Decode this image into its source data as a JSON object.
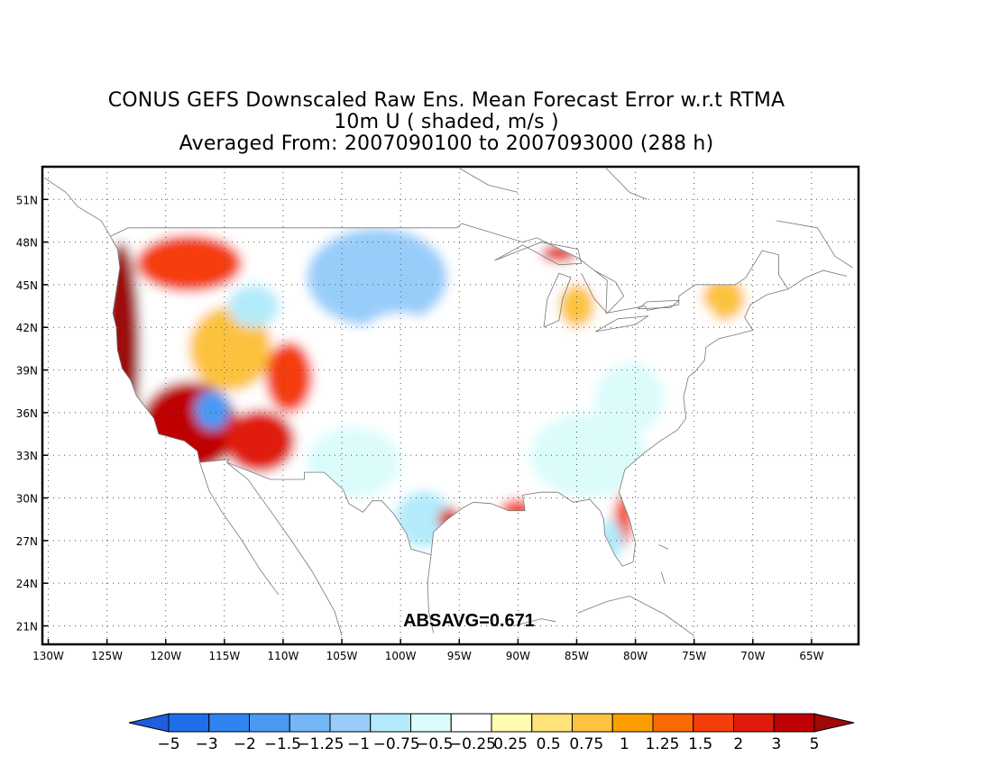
{
  "title": {
    "line1": "CONUS GEFS Downscaled Raw Ens. Mean Forecast Error w.r.t RTMA",
    "line2": "10m U ( shaded, m/s )",
    "line3": "Averaged From: 2007090100 to 2007093000 (288 h)"
  },
  "annotation": "ABSAVG=0.671",
  "axes": {
    "lat_ticks": [
      "51N",
      "48N",
      "45N",
      "42N",
      "39N",
      "36N",
      "33N",
      "30N",
      "27N",
      "24N",
      "21N"
    ],
    "lat_values": [
      51,
      48,
      45,
      42,
      39,
      36,
      33,
      30,
      27,
      24,
      21
    ],
    "lon_ticks": [
      "130W",
      "125W",
      "120W",
      "115W",
      "110W",
      "105W",
      "100W",
      "95W",
      "90W",
      "85W",
      "80W",
      "75W",
      "70W",
      "65W"
    ],
    "lon_values": [
      -130,
      -125,
      -120,
      -115,
      -110,
      -105,
      -100,
      -95,
      -90,
      -85,
      -80,
      -75,
      -70,
      -65
    ],
    "lat_range": [
      19.7,
      53.3
    ],
    "lon_range": [
      -130.5,
      -61
    ],
    "grid": "dotted"
  },
  "colorbar": {
    "labels": [
      "−5",
      "−3",
      "−2",
      "−1.5",
      "−1.25",
      "−1",
      "−0.75",
      "−0.5",
      "−0.25",
      "0.25",
      "0.5",
      "0.75",
      "1",
      "1.25",
      "1.5",
      "2",
      "3",
      "5"
    ],
    "colors": [
      "#1e5fe0",
      "#1f6fe8",
      "#2f84ef",
      "#4a9af4",
      "#74b6f8",
      "#98cdfa",
      "#b4ebfb",
      "#dcfcfc",
      "#ffffff",
      "#fffbb0",
      "#fee27a",
      "#fdc23e",
      "#fb9f00",
      "#fb6a00",
      "#f53c0b",
      "#e01b0c",
      "#bf0004",
      "#9e0a08"
    ]
  },
  "regions": [
    {
      "name": "west-coast-high",
      "lat": 40.5,
      "lon": -123.8,
      "rx": 1.6,
      "ry": 7.5,
      "value": 3
    },
    {
      "name": "southwest-desert",
      "lat": 35.0,
      "lon": -118.0,
      "rx": 4.2,
      "ry": 3.2,
      "value": 2.5
    },
    {
      "name": "northwest-interior",
      "lat": 46.5,
      "lon": -118.0,
      "rx": 4.5,
      "ry": 2.0,
      "value": 1.4
    },
    {
      "name": "great-basin-mix",
      "lat": 40.5,
      "lon": -114.5,
      "rx": 3.5,
      "ry": 3.0,
      "value": 0.6
    },
    {
      "name": "nevada-low",
      "lat": 36.2,
      "lon": -116.0,
      "rx": 1.5,
      "ry": 1.4,
      "value": -2
    },
    {
      "name": "arizona-high",
      "lat": 34.0,
      "lon": -112.0,
      "rx": 3.0,
      "ry": 2.2,
      "value": 1.6
    },
    {
      "name": "utah-high",
      "lat": 38.5,
      "lon": -109.5,
      "rx": 2.0,
      "ry": 2.5,
      "value": 1.3
    },
    {
      "name": "idaho-low",
      "lat": 43.5,
      "lon": -112.5,
      "rx": 2.2,
      "ry": 1.5,
      "value": -1
    },
    {
      "name": "northern-plains-low",
      "lat": 45.5,
      "lon": -102.0,
      "rx": 6.0,
      "ry": 3.5,
      "value": -1.25
    },
    {
      "name": "central-plains-low",
      "lat": 39.5,
      "lon": -100.0,
      "rx": 4.5,
      "ry": 3.5,
      "value": -0.5
    },
    {
      "name": "southern-plains-low",
      "lat": 32.5,
      "lon": -104.0,
      "rx": 4.0,
      "ry": 2.5,
      "value": -0.75
    },
    {
      "name": "texas-coast-low",
      "lat": 28.5,
      "lon": -98.0,
      "rx": 2.5,
      "ry": 2.0,
      "value": -1
    },
    {
      "name": "texas-coast-high",
      "lat": 28.5,
      "lon": -95.8,
      "rx": 1.0,
      "ry": 0.8,
      "value": 1.5
    },
    {
      "name": "louisiana-high",
      "lat": 29.2,
      "lon": -90.0,
      "rx": 1.5,
      "ry": 0.7,
      "value": 1.25
    },
    {
      "name": "midwest-light",
      "lat": 41.0,
      "lon": -88.0,
      "rx": 6.0,
      "ry": 4.0,
      "value": -0.4
    },
    {
      "name": "southeast-light",
      "lat": 33.0,
      "lon": -84.0,
      "rx": 5.0,
      "ry": 3.0,
      "value": -0.6
    },
    {
      "name": "appalachian-low",
      "lat": 37.0,
      "lon": -80.5,
      "rx": 3.0,
      "ry": 2.5,
      "value": -0.75
    },
    {
      "name": "florida-east-high",
      "lat": 28.5,
      "lon": -81.0,
      "rx": 0.8,
      "ry": 1.8,
      "value": 1.4
    },
    {
      "name": "florida-west-low",
      "lat": 27.0,
      "lon": -82.2,
      "rx": 1.2,
      "ry": 1.5,
      "value": -1
    },
    {
      "name": "great-lakes-high",
      "lat": 47.2,
      "lon": -86.5,
      "rx": 1.5,
      "ry": 0.6,
      "value": 1.5
    },
    {
      "name": "michigan-yellow",
      "lat": 43.5,
      "lon": -85.0,
      "rx": 1.5,
      "ry": 1.5,
      "value": 0.5
    },
    {
      "name": "new-england-yellow",
      "lat": 44.0,
      "lon": -72.5,
      "rx": 1.8,
      "ry": 1.5,
      "value": 0.6
    },
    {
      "name": "northeast-light",
      "lat": 42.0,
      "lon": -76.0,
      "rx": 3.0,
      "ry": 2.0,
      "value": -0.3
    }
  ]
}
